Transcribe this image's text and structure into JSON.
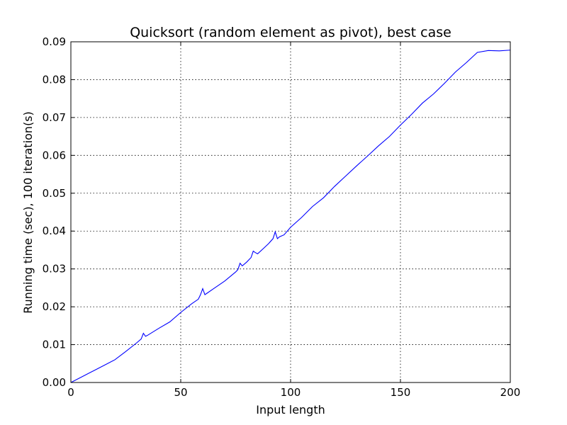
{
  "chart_data": {
    "type": "line",
    "title": "Quicksort (random element as pivot), best case",
    "xlabel": "Input length",
    "ylabel": "Running time (sec), 100 iteration(s)",
    "xlim": [
      0,
      200
    ],
    "ylim": [
      0,
      0.09
    ],
    "xticks": [
      0,
      50,
      100,
      150,
      200
    ],
    "xtick_labels": [
      "0",
      "50",
      "100",
      "150",
      "200"
    ],
    "yticks": [
      0,
      0.01,
      0.02,
      0.03,
      0.04,
      0.05,
      0.06,
      0.07,
      0.08,
      0.09
    ],
    "ytick_labels": [
      "0.00",
      "0.01",
      "0.02",
      "0.03",
      "0.04",
      "0.05",
      "0.06",
      "0.07",
      "0.08",
      "0.09"
    ],
    "grid": true,
    "series": [
      {
        "color": "#0000ff",
        "x": [
          0,
          5,
          10,
          15,
          20,
          25,
          30,
          32,
          33,
          34,
          35,
          40,
          45,
          50,
          55,
          58,
          59,
          60,
          61,
          62,
          65,
          70,
          75,
          76,
          77,
          78,
          80,
          82,
          83,
          84,
          85,
          88,
          90,
          92,
          93,
          94,
          95,
          97,
          100,
          105,
          110,
          115,
          120,
          125,
          130,
          135,
          140,
          145,
          150,
          155,
          160,
          165,
          170,
          175,
          180,
          185,
          190,
          195,
          200
        ],
        "y": [
          0,
          0.0015,
          0.003,
          0.0045,
          0.006,
          0.0082,
          0.0105,
          0.0115,
          0.013,
          0.0122,
          0.0125,
          0.0143,
          0.016,
          0.0185,
          0.0208,
          0.022,
          0.0232,
          0.0248,
          0.0232,
          0.0236,
          0.0248,
          0.0268,
          0.0292,
          0.0298,
          0.0315,
          0.0308,
          0.0318,
          0.033,
          0.0347,
          0.0343,
          0.034,
          0.0356,
          0.0367,
          0.038,
          0.0398,
          0.038,
          0.0385,
          0.039,
          0.041,
          0.0436,
          0.0465,
          0.0488,
          0.0518,
          0.0545,
          0.0572,
          0.0598,
          0.0625,
          0.065,
          0.068,
          0.0708,
          0.0738,
          0.0762,
          0.079,
          0.082,
          0.0845,
          0.0872,
          0.0877,
          0.0876,
          0.0878
        ]
      }
    ]
  }
}
